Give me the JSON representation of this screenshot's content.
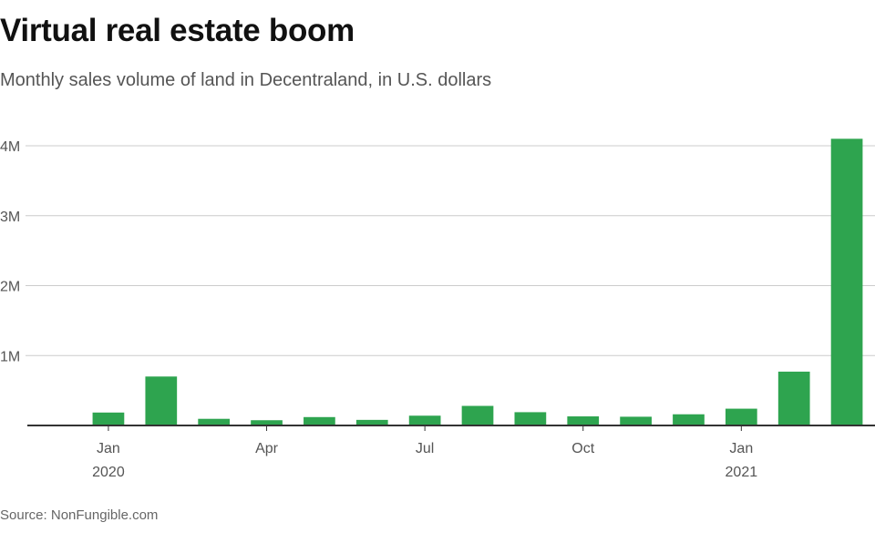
{
  "chart_data": {
    "type": "bar",
    "title": "Virtual real estate boom",
    "subtitle": "Monthly sales volume of land in Decentraland, in U.S. dollars",
    "source": "Source: NonFungible.com",
    "ylim": [
      0,
      4000000
    ],
    "y_ticks": [
      {
        "value": 1000000,
        "label": "1M"
      },
      {
        "value": 2000000,
        "label": "2M"
      },
      {
        "value": 3000000,
        "label": "3M"
      },
      {
        "value": 4000000,
        "label": "4M"
      }
    ],
    "categories": [
      "Jan 2020",
      "Feb 2020",
      "Mar 2020",
      "Apr 2020",
      "May 2020",
      "Jun 2020",
      "Jul 2020",
      "Aug 2020",
      "Sep 2020",
      "Oct 2020",
      "Nov 2020",
      "Dec 2020",
      "Jan 2021",
      "Feb 2021",
      "Mar 2021"
    ],
    "values": [
      185000,
      700000,
      95000,
      75000,
      120000,
      80000,
      140000,
      280000,
      190000,
      130000,
      125000,
      160000,
      240000,
      770000,
      4100000
    ],
    "x_tick_labels": [
      {
        "index": 0,
        "month": "Jan",
        "year": "2020"
      },
      {
        "index": 3,
        "month": "Apr",
        "year": ""
      },
      {
        "index": 6,
        "month": "Jul",
        "year": ""
      },
      {
        "index": 9,
        "month": "Oct",
        "year": ""
      },
      {
        "index": 12,
        "month": "Jan",
        "year": "2021"
      }
    ],
    "colors": {
      "bar": "#2ea44f",
      "grid": "#cccccc",
      "baseline": "#333333"
    }
  }
}
